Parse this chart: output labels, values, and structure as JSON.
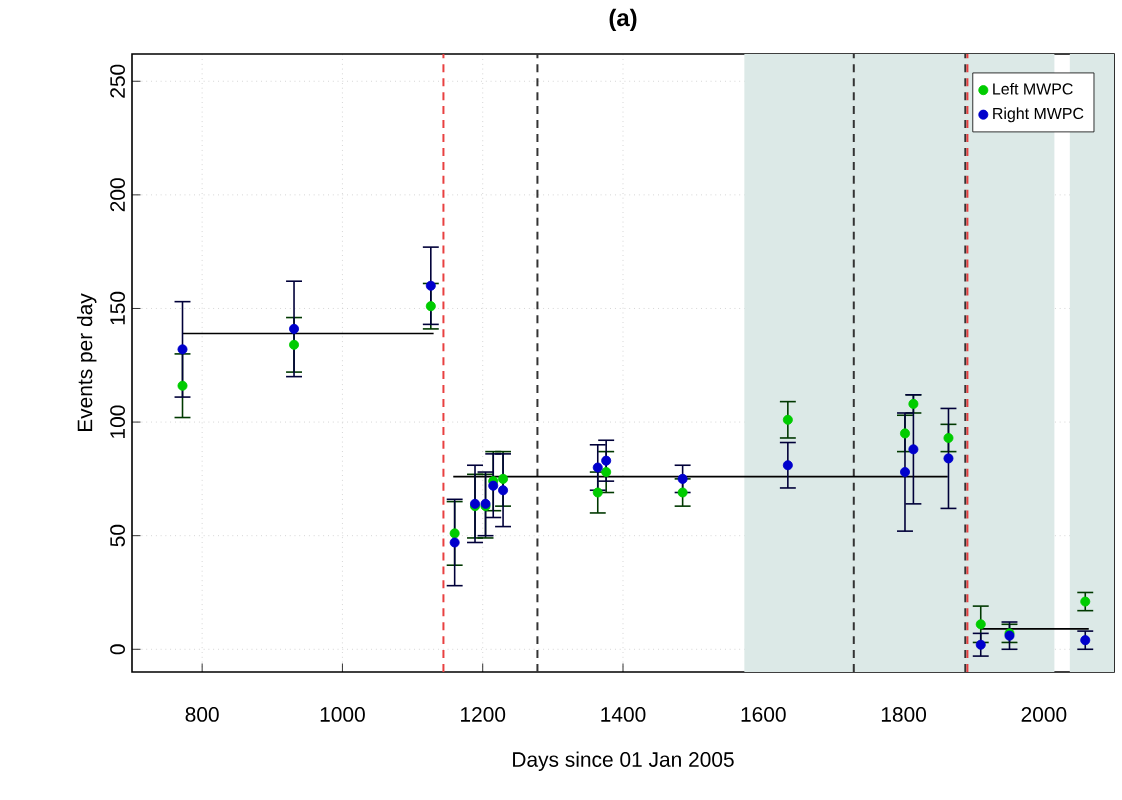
{
  "chart_data": {
    "type": "scatter",
    "title": "(a)",
    "xlabel": "Days since 01 Jan 2005",
    "ylabel": "Events per day",
    "xlim": [
      700,
      2100
    ],
    "ylim": [
      -10,
      262
    ],
    "xticks": [
      800,
      1000,
      1200,
      1400,
      1600,
      1800,
      2000
    ],
    "yticks": [
      0,
      50,
      100,
      150,
      200,
      250
    ],
    "grid": true,
    "legend": "top right",
    "series": [
      {
        "name": "Left MWPC",
        "color": "#00cc00",
        "marker": "circle",
        "x": [
          772,
          931,
          1126,
          1160,
          1189,
          1204,
          1215,
          1229,
          1364,
          1376,
          1485,
          1635,
          1802,
          1814,
          1864,
          1910,
          1951,
          2059
        ],
        "values": [
          116,
          134,
          151,
          51,
          63,
          63,
          74,
          75,
          69,
          78,
          69,
          101,
          95,
          108,
          93,
          11,
          7,
          21
        ],
        "errors": [
          14,
          12,
          10,
          14,
          14,
          14,
          13,
          12,
          9,
          9,
          6,
          8,
          8,
          4,
          6,
          8,
          4,
          4
        ]
      },
      {
        "name": "Right MWPC",
        "color": "#0000cc",
        "marker": "circle",
        "x": [
          772,
          931,
          1126,
          1160,
          1189,
          1204,
          1215,
          1229,
          1364,
          1376,
          1485,
          1635,
          1802,
          1814,
          1864,
          1910,
          1951,
          2059
        ],
        "values": [
          132,
          141,
          160,
          47,
          64,
          64,
          72,
          70,
          80,
          83,
          75,
          81,
          78,
          88,
          84,
          2,
          6,
          4
        ],
        "errors": [
          21,
          21,
          17,
          19,
          17,
          14,
          14,
          16,
          10,
          9,
          6,
          10,
          26,
          24,
          22,
          5,
          6,
          4
        ]
      },
      {
        "type": "line",
        "color": "#000000",
        "marker": "none",
        "x": [
          772,
          1130
        ],
        "values": [
          139,
          139
        ]
      },
      {
        "type": "line",
        "color": "#000000",
        "marker": "none",
        "x": [
          1158,
          1863
        ],
        "values": [
          76,
          76
        ]
      },
      {
        "type": "line",
        "color": "#000000",
        "marker": "none",
        "x": [
          1910,
          2064
        ],
        "values": [
          9,
          9
        ]
      }
    ],
    "ref_lines": [
      {
        "axis": "x",
        "value": 1144,
        "color": "#e84040",
        "line_style": "dashed"
      },
      {
        "axis": "x",
        "value": 1278,
        "color": "#333333",
        "line_style": "dashed"
      },
      {
        "axis": "x",
        "value": 1729,
        "color": "#333333",
        "line_style": "dashed"
      },
      {
        "axis": "x",
        "value": 1888,
        "color": "#333333",
        "line_style": "dashed"
      },
      {
        "axis": "x",
        "value": 1891,
        "color": "#e84040",
        "line_style": "dashed"
      }
    ],
    "bands": [
      {
        "axis": "x",
        "from": 1573,
        "to": 2015,
        "color": "#dce9e7"
      },
      {
        "axis": "x",
        "from": 2037,
        "to": 2100,
        "color": "#dce9e7"
      }
    ]
  }
}
